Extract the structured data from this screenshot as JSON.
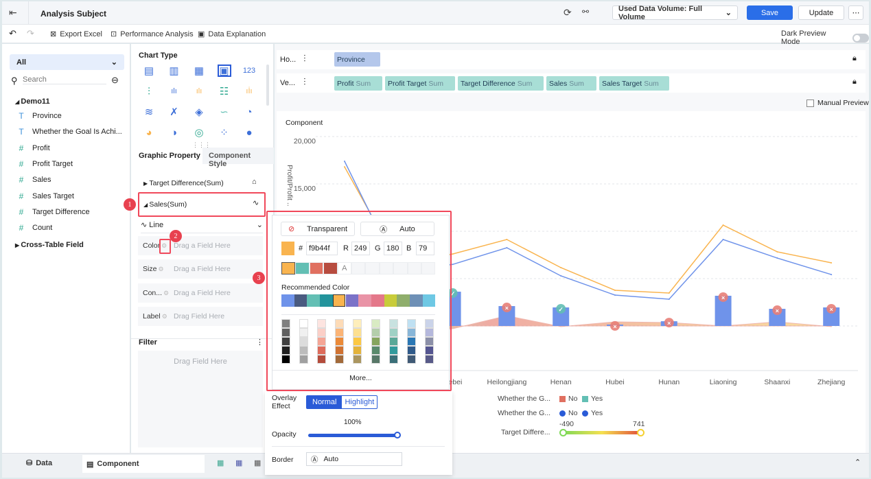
{
  "header": {
    "title": "Analysis Subject",
    "data_volume": "Used Data Volume: Full Volume",
    "save": "Save",
    "update": "Update"
  },
  "toolbar": {
    "export_excel": "Export Excel",
    "performance_analysis": "Performance Analysis",
    "data_explanation": "Data Explanation",
    "dark_preview": "Dark Preview Mode"
  },
  "left": {
    "filter_select": "All",
    "search_placeholder": "Search",
    "dataset": "Demo11",
    "fields": [
      {
        "label": "Province",
        "type": "text"
      },
      {
        "label": "Whether the Goal Is Achi...",
        "type": "text"
      },
      {
        "label": "Profit",
        "type": "number"
      },
      {
        "label": "Profit Target",
        "type": "number"
      },
      {
        "label": "Sales",
        "type": "number"
      },
      {
        "label": "Sales Target",
        "type": "number"
      },
      {
        "label": "Target Difference",
        "type": "number"
      },
      {
        "label": "Count",
        "type": "number"
      }
    ],
    "cross_table": "Cross-Table Field"
  },
  "mid": {
    "chart_type_title": "Chart Type",
    "tabs": [
      "Graphic Property",
      "Component Style"
    ],
    "target_diff": "Target Difference(Sum)",
    "sales": "Sales(Sum)",
    "line_type": "Line",
    "props": [
      {
        "label": "Color",
        "drop": "Drag a Field Here"
      },
      {
        "label": "Size",
        "drop": "Drag a Field Here"
      },
      {
        "label": "Con...",
        "drop": "Drag a Field Here"
      },
      {
        "label": "Label",
        "drop": "Drag Field Here"
      }
    ],
    "filter_title": "Filter",
    "filter_drop": "Drag Field Here"
  },
  "axes": {
    "horizontal_label": "Ho...",
    "vertical_label": "Ve...",
    "horizontal": [
      {
        "name": "Province",
        "agg": ""
      }
    ],
    "vertical": [
      {
        "name": "Profit",
        "agg": "Sum"
      },
      {
        "name": "Profit Target",
        "agg": "Sum"
      },
      {
        "name": "Target Difference",
        "agg": "Sum"
      },
      {
        "name": "Sales",
        "agg": "Sum"
      },
      {
        "name": "Sales Target",
        "agg": "Sum"
      }
    ],
    "manual_preview": "Manual Preview"
  },
  "color_picker": {
    "transparent": "Transparent",
    "auto": "Auto",
    "hex_label": "#",
    "hex": "f9b44f",
    "r_label": "R",
    "r": "249",
    "g_label": "G",
    "g": "180",
    "b_label": "B",
    "b": "79",
    "auto_swatch": "A",
    "recent": [
      "#f9b44f",
      "#63bfb4",
      "#e07060",
      "#b74c3f"
    ],
    "recommended_title": "Recommended Color",
    "recommended": [
      "#6f93ea",
      "#4a5b80",
      "#63bfb4",
      "#23949c",
      "#f9b44f",
      "#7b72c8",
      "#e993a6",
      "#e4788a",
      "#c8cc3a",
      "#8fae6c",
      "#6e90b6",
      "#6ec8e4"
    ],
    "palette": [
      [
        "#808080",
        "#606060",
        "#404040",
        "#202020",
        "#000000"
      ],
      [
        "#ffffff",
        "#f0f0f0",
        "#dcdcdc",
        "#bcbcbc",
        "#a0a0a0"
      ],
      [
        "#fde4e0",
        "#fbcfc7",
        "#f5a595",
        "#de6b5b",
        "#b44c3c"
      ],
      [
        "#fddbb7",
        "#fbb476",
        "#eb8a38",
        "#d07231",
        "#a26a3a"
      ],
      [
        "#feeebb",
        "#fde090",
        "#fcc843",
        "#e4b33b",
        "#ab9660"
      ],
      [
        "#d9ebc3",
        "#b4ceab",
        "#86a55e",
        "#5a8a6c",
        "#587868"
      ],
      [
        "#c8e2e0",
        "#9fd1c5",
        "#5aa898",
        "#329a9c",
        "#3a6f78"
      ],
      [
        "#bfe0f2",
        "#88b6d8",
        "#2a77b4",
        "#2f5a8a",
        "#405a76"
      ],
      [
        "#cad3e9",
        "#b5b8dc",
        "#8b8fa8",
        "#545590",
        "#585a88"
      ]
    ],
    "more": "More..."
  },
  "style": {
    "overlay_label": "Overlay Effect",
    "normal": "Normal",
    "highlight": "Highlight",
    "opacity_value": "100%",
    "opacity_label": "Opacity",
    "opacity": 1.0,
    "border_label": "Border",
    "border_value": "Auto"
  },
  "annotations": [
    "1",
    "2",
    "3"
  ],
  "bottom": {
    "data_tab": "Data",
    "component_tab": "Component"
  },
  "chart_data": {
    "type": "combo",
    "title": "Component",
    "ylabel": "Profit/Profit ...",
    "ylim": [
      0,
      20000
    ],
    "yticks": [
      "20,000",
      "15,000"
    ],
    "categories": [
      "",
      "",
      "Hebei",
      "Heilongjiang",
      "Henan",
      "Hubei",
      "Hunan",
      "Liaoning",
      "Shaanxi",
      "Zhejiang"
    ],
    "series": [
      {
        "type": "line",
        "color": "#f9b44f",
        "values": [
          16800,
          6500,
          7600,
          9130,
          6160,
          3770,
          3480,
          10650,
          7830,
          6670
        ]
      },
      {
        "type": "line",
        "color": "#6f93ea",
        "values": [
          17390,
          5800,
          6500,
          8260,
          5290,
          3260,
          2830,
          9130,
          7170,
          5430
        ]
      },
      {
        "type": "bar",
        "color": "#6f93ea",
        "values": [
          null,
          null,
          3620,
          2100,
          1960,
          150,
          500,
          3190,
          1810,
          1960
        ]
      },
      {
        "type": "area",
        "values": [
          -300,
          -490,
          -200,
          741,
          -50,
          300,
          250,
          0,
          300,
          -50
        ]
      }
    ],
    "goal_marks": [
      "",
      "",
      "yes",
      "no",
      "yes",
      "no",
      "no",
      "no",
      "no",
      "no"
    ],
    "legends": [
      {
        "label": "Whether the G...",
        "items": [
          {
            "name": "No",
            "color": "#e07060"
          },
          {
            "name": "Yes",
            "color": "#63bfb4"
          }
        ]
      },
      {
        "label": "Whether the G...",
        "items": [
          {
            "name": "No",
            "color": "#2a5bd7"
          },
          {
            "name": "Yes",
            "color": "#2a5bd7"
          }
        ]
      }
    ],
    "gradient_legend": {
      "label": "Target Differe...",
      "min": "-490",
      "max": "741"
    }
  }
}
